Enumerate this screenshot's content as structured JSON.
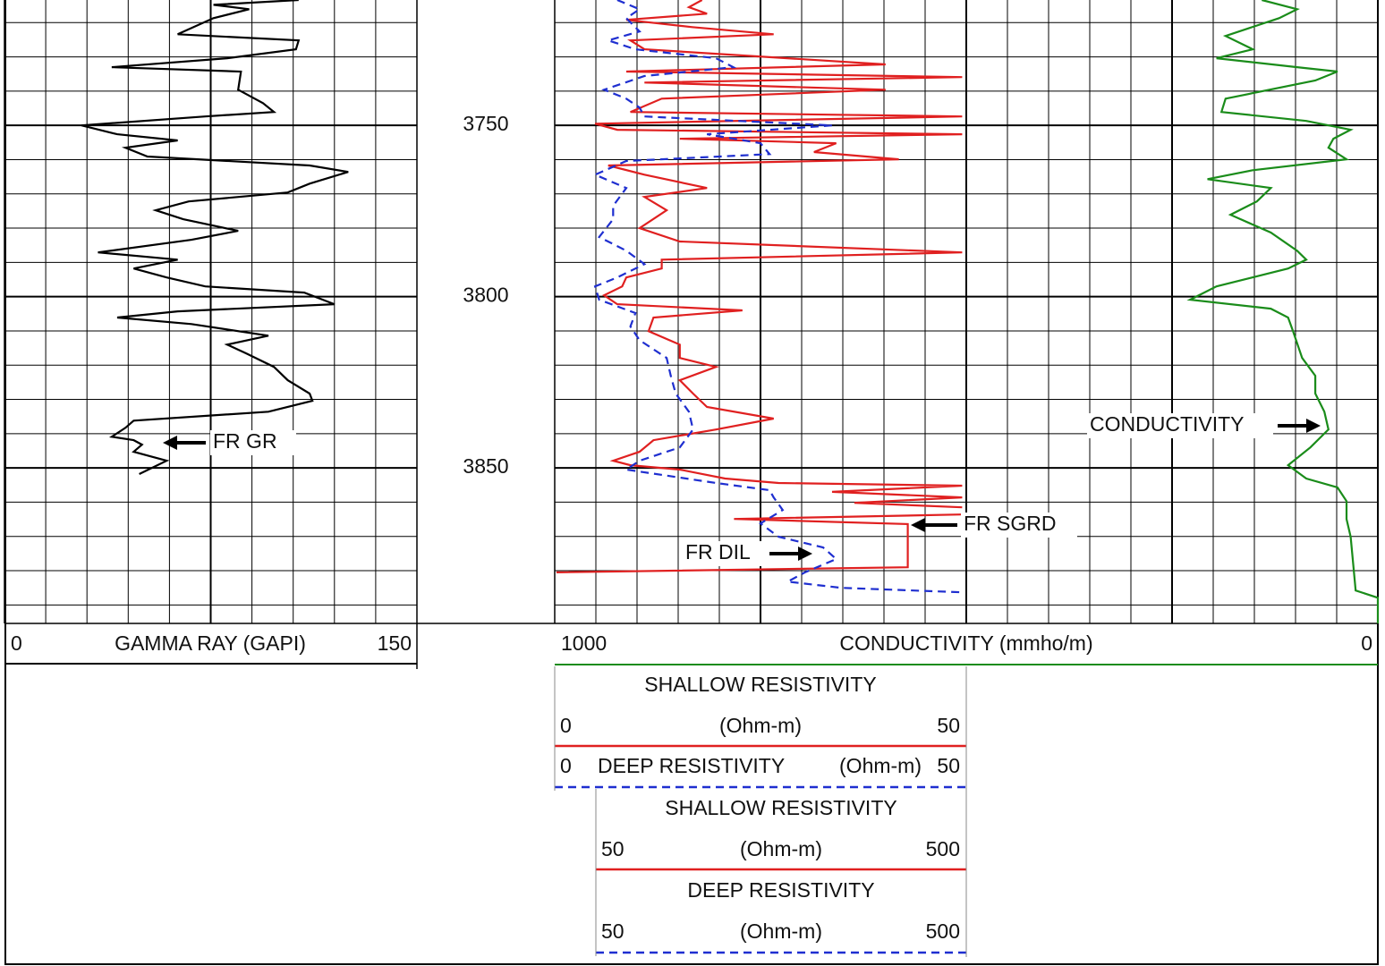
{
  "chart_data": {
    "type": "well-log",
    "ylim": [
      3713.4,
      3895.4
    ],
    "yticks": [
      3750,
      3800,
      3850
    ],
    "ygrid": [
      3720,
      3730,
      3740,
      3760,
      3770,
      3780,
      3790,
      3810,
      3820,
      3830,
      3840,
      3860,
      3870,
      3880,
      3890
    ],
    "tracks": [
      {
        "title": "GAMMA RAY (GAPI)",
        "xlim": [
          0,
          150
        ],
        "divisions": 10,
        "series": [
          {
            "name": "FR GR",
            "color": "#000000",
            "depth": [
              3713.4,
              3714.8,
              3716.1,
              3718.7,
              3723.4,
              3725.2,
              3727.8,
              3730.4,
              3733.0,
              3734.3,
              3739.6,
              3743.5,
              3746.1,
              3747.4,
              3750.0,
              3752.6,
              3754.4,
              3756.5,
              3759.1,
              3761.7,
              3763.6,
              3767.0,
              3769.6,
              3772.2,
              3774.8,
              3777.4,
              3780.8,
              3783.4,
              3787.1,
              3789.2,
              3791.8,
              3794.4,
              3797.0,
              3798.8,
              3802.2,
              3804.3,
              3806.1,
              3808.0,
              3811.4,
              3814.0,
              3816.6,
              3820.5,
              3824.4,
              3828.3,
              3830.4,
              3833.6,
              3836.2,
              3838.3,
              3840.9,
              3841.9,
              3843.2,
              3845.3,
              3847.9,
              3851.8
            ],
            "values": [
              107,
              76,
              89,
              76,
              63,
              107,
              106,
              81,
              39,
              86,
              85,
              94,
              98,
              73,
              28,
              41,
              63,
              44,
              52,
              111,
              125,
              111,
              103,
              67,
              55,
              65,
              85,
              68,
              34,
              63,
              47,
              59,
              73,
              109,
              120,
              63,
              41,
              68,
              96,
              81,
              88,
              98,
              103,
              111,
              112,
              96,
              47,
              44,
              39,
              47,
              50,
              47,
              59,
              49
            ]
          }
        ]
      },
      {
        "scales": [
          {
            "title": "SHALLOW RESISTIVITY",
            "unit": "(Ohm-m)",
            "xlim": [
              0,
              50
            ]
          },
          {
            "title": "DEEP RESISTIVITY",
            "unit": "(Ohm-m)",
            "xlim": [
              0,
              50
            ]
          },
          {
            "title": "SHALLOW RESISTIVITY",
            "unit": "(Ohm-m)",
            "xlim": [
              50,
              500
            ]
          },
          {
            "title": "DEEP RESISTIVITY",
            "unit": "(Ohm-m)",
            "xlim": [
              50,
              500
            ]
          }
        ],
        "series": [
          {
            "name": "FR SGRD",
            "color": "#e02020",
            "dash": false,
            "depth": [
              3713.4,
              3715.5,
              3717.4,
              3719.2,
              3721.3,
              3723.4,
              3725.2,
              3727.8,
              3732.2,
              3734.3,
              3735.9,
              3737.5,
              3739.6,
              3742.2,
              3746.1,
              3747.4,
              3749.5,
              3751.3,
              3752.6,
              3753.9,
              3755.2,
              3757.8,
              3759.9,
              3761.7,
              3764.4,
              3768.3,
              3770.9,
              3774.8,
              3780.0,
              3783.9,
              3787.1,
              3789.2,
              3791.8,
              3794.4,
              3797.0,
              3799.6,
              3802.2,
              3804.0,
              3806.1,
              3810.1,
              3814.0,
              3817.9,
              3820.5,
              3824.4,
              3828.3,
              3832.2,
              3835.6,
              3838.8,
              3841.9,
              3845.3,
              3847.9,
              3849.2,
              3850.5,
              3853.1,
              3854.4,
              3855.2,
              3857.0,
              3858.6,
              3860.2,
              3861.5,
              3863.6,
              3864.9,
              3866.4,
              3879.0,
              3880.5
            ],
            "values": [
              17.9,
              16.3,
              18.5,
              8.7,
              16.7,
              26.6,
              9.2,
              10.9,
              40.2,
              8.7,
              49.5,
              10.9,
              40.2,
              13.0,
              9.2,
              49.5,
              4.9,
              7.6,
              49.5,
              15.2,
              34.2,
              31.5,
              41.8,
              6.5,
              10.9,
              18.5,
              10.9,
              13.6,
              10.3,
              15.2,
              49.5,
              13.0,
              13.0,
              8.7,
              8.2,
              6.0,
              7.6,
              22.8,
              12.0,
              11.4,
              15.2,
              15.2,
              19.6,
              15.2,
              16.8,
              18.5,
              26.6,
              19.6,
              12.0,
              10.3,
              7.1,
              9.2,
              15.2,
              20.7,
              27.2,
              49.5,
              33.7,
              49.5,
              36.4,
              49.5,
              495,
              246,
              436,
              436,
              52
            ]
          },
          {
            "name": "FR DIL",
            "color": "#1f2fd0",
            "dash": true,
            "depth": [
              3713.4,
              3716.1,
              3718.7,
              3722.6,
              3725.2,
              3727.8,
              3730.4,
              3733.0,
              3735.6,
              3739.6,
              3742.2,
              3744.8,
              3747.4,
              3750.0,
              3752.6,
              3755.2,
              3758.4,
              3760.4,
              3764.4,
              3768.3,
              3773.5,
              3777.4,
              3782.6,
              3786.6,
              3790.5,
              3794.4,
              3797.0,
              3800.9,
              3804.8,
              3808.7,
              3812.7,
              3817.9,
              3823.1,
              3828.3,
              3833.6,
              3838.8,
              3844.0,
              3847.9,
              3850.5,
              3854.4,
              3856.5,
              3858.6,
              3862.3,
              3866.2,
              3870.1,
              3873.2,
              3876.6,
              3880.5,
              3883.2,
              3885.0,
              3886.3,
              3887.1
            ],
            "values": [
              7.6,
              10.3,
              8.7,
              10.3,
              6.5,
              9.8,
              19.6,
              21.7,
              10.9,
              6.0,
              8.7,
              10.3,
              10.9,
              33.7,
              18.5,
              25,
              26.1,
              8.7,
              4.9,
              8.7,
              7.1,
              7.1,
              5.4,
              8.7,
              10.9,
              7.6,
              4.9,
              5.4,
              9.8,
              9.2,
              10.3,
              13.6,
              14.1,
              14.7,
              16.3,
              16.8,
              15.2,
              10.3,
              8.7,
              19.6,
              26.1,
              26.6,
              27.7,
              25,
              27.2,
              32.6,
              34.2,
              30.4,
              28.3,
              34.8,
              49.5,
              99
            ]
          }
        ]
      },
      {
        "title": "CONDUCTIVITY (mmho/m)",
        "xlim": [
          1000,
          0
        ],
        "divisions": 20,
        "series": [
          {
            "name": "CONDUCTIVITY",
            "color": "#1a8c1a",
            "depth": [
              3713.4,
              3716.1,
              3718.7,
              3723.9,
              3727.8,
              3730.4,
              3733.0,
              3734.3,
              3736.9,
              3742.2,
              3746.1,
              3748.7,
              3751.3,
              3753.9,
              3756.5,
              3759.9,
              3763.1,
              3765.7,
              3768.3,
              3772.2,
              3776.1,
              3781.3,
              3786.6,
              3789.2,
              3791.8,
              3797.0,
              3800.9,
              3803.5,
              3806.1,
              3810.1,
              3817.9,
              3823.1,
              3828.3,
              3833.6,
              3838.8,
              3844.0,
              3849.2,
              3853.1,
              3855.7,
              3859.7,
              3864.9,
              3870.1,
              3877.9,
              3885.8,
              3887.9,
              3895.4
            ],
            "values": [
              141,
              98,
              120,
              185,
              152,
              196,
              98,
              49,
              76,
              185,
              190,
              87,
              33,
              54,
              60,
              38,
              152,
              207,
              130,
              147,
              179,
              130,
              98,
              87,
              109,
              196,
              228,
              130,
              109,
              103,
              92,
              76,
              76,
              65,
              60,
              82,
              109,
              87,
              49,
              38,
              38,
              33,
              30,
              27,
              0,
              0
            ]
          }
        ]
      }
    ]
  }
}
